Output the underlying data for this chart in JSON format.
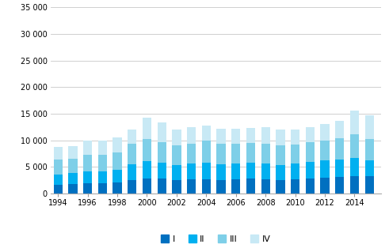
{
  "years": [
    1994,
    1995,
    1996,
    1997,
    1998,
    1999,
    2000,
    2001,
    2002,
    2003,
    2004,
    2005,
    2006,
    2007,
    2008,
    2009,
    2010,
    2011,
    2012,
    2013,
    2014,
    2015
  ],
  "Q1": [
    1600,
    1700,
    1900,
    1900,
    2000,
    2500,
    2800,
    2800,
    2500,
    2700,
    2700,
    2500,
    2700,
    2800,
    2700,
    2500,
    2600,
    2800,
    3000,
    3100,
    3300,
    3200
  ],
  "Q2": [
    2000,
    2100,
    2300,
    2300,
    2500,
    3000,
    3300,
    3000,
    2800,
    3000,
    3100,
    3000,
    2900,
    3000,
    3000,
    2900,
    3000,
    3200,
    3200,
    3300,
    3400,
    3100
  ],
  "Q3": [
    2800,
    2700,
    3100,
    3100,
    3200,
    3800,
    4200,
    3900,
    3700,
    3700,
    4100,
    3900,
    3800,
    3700,
    3700,
    3600,
    3600,
    3700,
    3800,
    4000,
    4400,
    3900
  ],
  "Q4": [
    2300,
    2400,
    2700,
    2600,
    2800,
    2700,
    4000,
    3600,
    3000,
    3100,
    2800,
    2800,
    2800,
    2800,
    3100,
    3000,
    2900,
    2800,
    3100,
    3200,
    4500,
    4500
  ],
  "colors": [
    "#0070C0",
    "#00B0F0",
    "#7ECFE8",
    "#C8E9F5"
  ],
  "legend_labels": [
    "I",
    "II",
    "III",
    "IV"
  ],
  "ylim": [
    0,
    35000
  ],
  "yticks": [
    0,
    5000,
    10000,
    15000,
    20000,
    25000,
    30000,
    35000
  ],
  "ytick_labels": [
    "0",
    "5 000",
    "10 000",
    "15 000",
    "20 000",
    "25 000",
    "30 000",
    "35 000"
  ],
  "xtick_years": [
    1994,
    1996,
    1998,
    2000,
    2002,
    2004,
    2006,
    2008,
    2010,
    2012,
    2014
  ],
  "background_color": "#ffffff",
  "grid_color": "#c8c8c8"
}
